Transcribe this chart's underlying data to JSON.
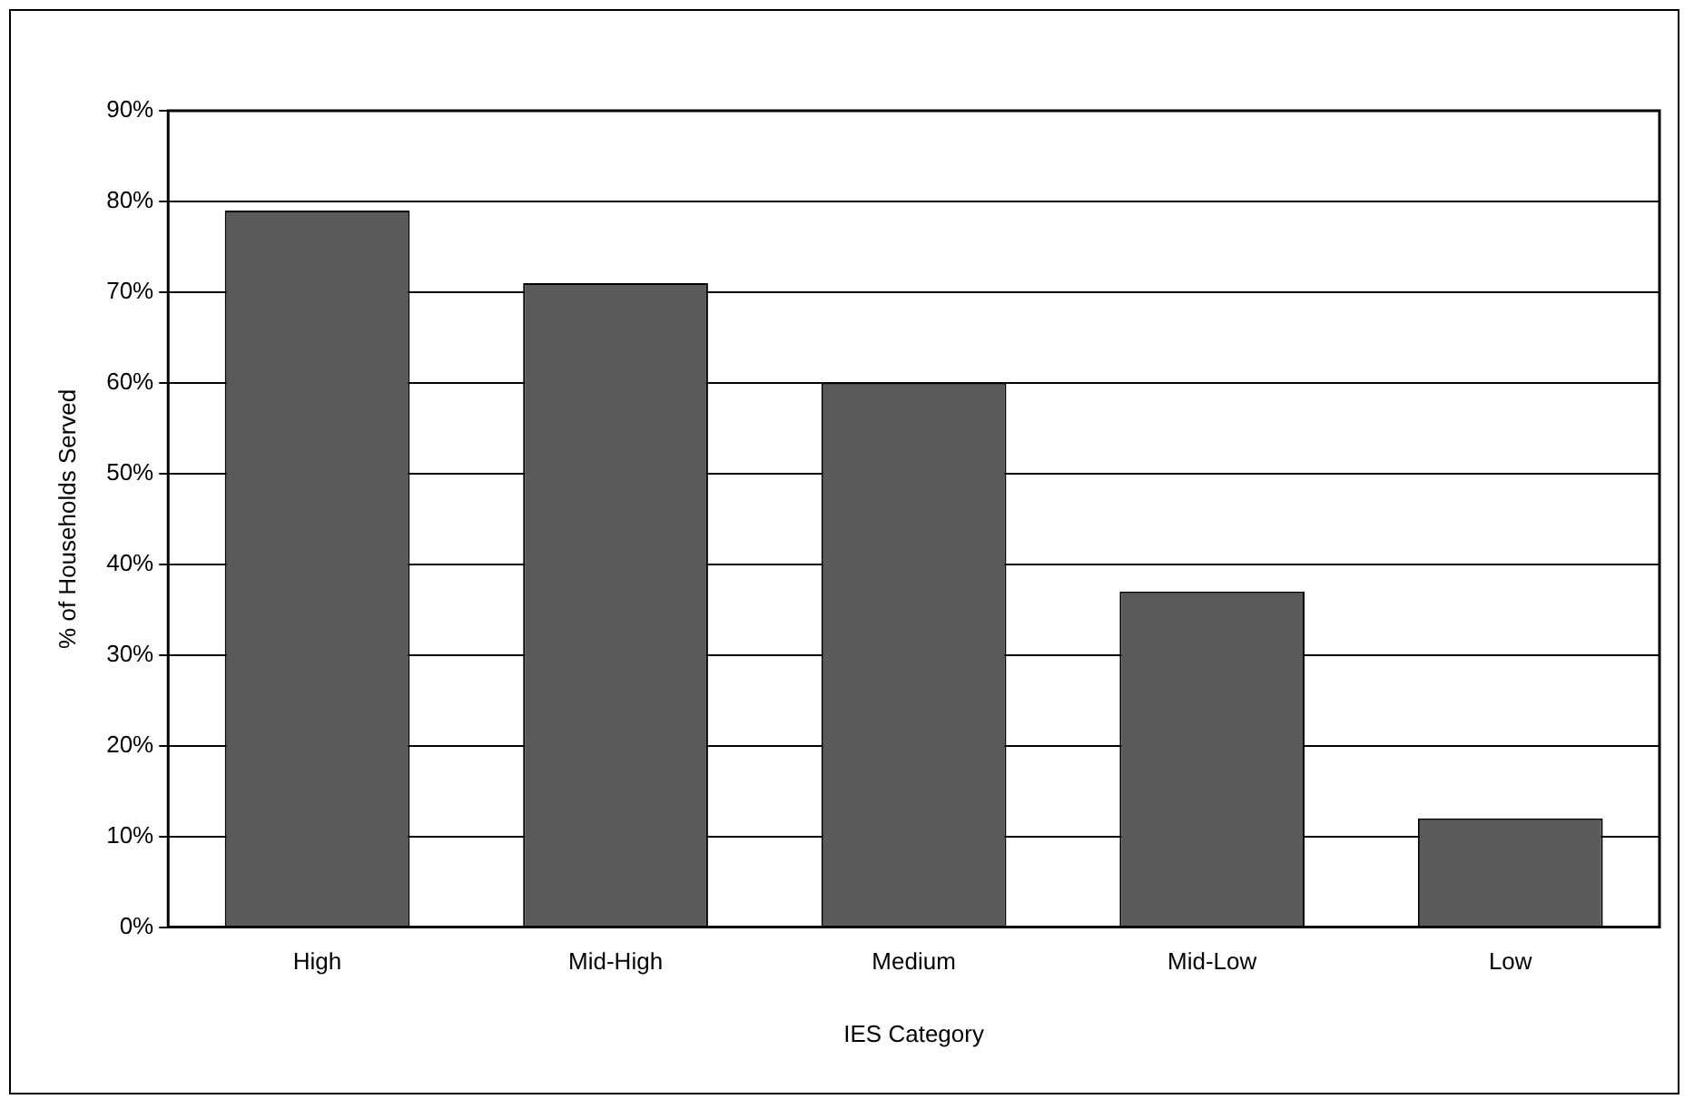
{
  "chart_data": {
    "type": "bar",
    "xlabel": "IES Category",
    "ylabel": "% of Households Served",
    "categories": [
      "High",
      "Mid-High",
      "Medium",
      "Mid-Low",
      "Low"
    ],
    "values": [
      0.79,
      0.71,
      0.6,
      0.37,
      0.12
    ],
    "color": "#5a5a5a",
    "ylim": [
      0,
      0.9
    ],
    "yticks": [
      {
        "value": 0,
        "label": "0%"
      },
      {
        "value": 0.1,
        "label": "10%"
      },
      {
        "value": 0.2,
        "label": "20%"
      },
      {
        "value": 0.3,
        "label": "30%"
      },
      {
        "value": 0.4,
        "label": "40%"
      },
      {
        "value": 0.5,
        "label": "50%"
      },
      {
        "value": 0.6,
        "label": "60%"
      },
      {
        "value": 0.7,
        "label": "70%"
      },
      {
        "value": 0.8,
        "label": "80%"
      },
      {
        "value": 0.9,
        "label": "90%"
      }
    ],
    "grid": "y",
    "legend": false
  }
}
